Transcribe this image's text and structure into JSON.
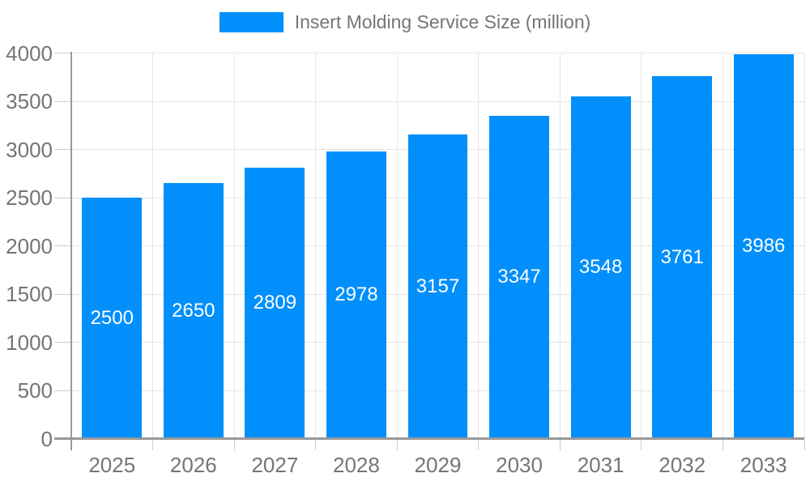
{
  "legend": {
    "label": "Insert Molding Service Size (million)",
    "marker_color": "#008FFB"
  },
  "chart_data": {
    "type": "bar",
    "title": "Insert Molding Service Size (million)",
    "series_name": "Insert Molding Service Size (million)",
    "categories": [
      "2025",
      "2026",
      "2027",
      "2028",
      "2029",
      "2030",
      "2031",
      "2032",
      "2033"
    ],
    "values": [
      2500,
      2650,
      2809,
      2978,
      3157,
      3347,
      3548,
      3761,
      3986
    ],
    "value_labels": [
      "2500",
      "2650",
      "2809",
      "2978",
      "3157",
      "3347",
      "3548",
      "3761",
      "3986"
    ],
    "xlabel": "",
    "ylabel": "",
    "ylim": [
      0,
      4000
    ],
    "yticks": [
      0,
      500,
      1000,
      1500,
      2000,
      2500,
      3000,
      3500,
      4000
    ],
    "grid": true,
    "legend_position": "top",
    "colors": {
      "bar": "#008FFB",
      "value_label": "#ffffff",
      "axis_text": "#757575",
      "axis_line": "#999999",
      "gridline": "#e5e5e5",
      "tick": "#cccccc",
      "background": "#ffffff"
    }
  }
}
